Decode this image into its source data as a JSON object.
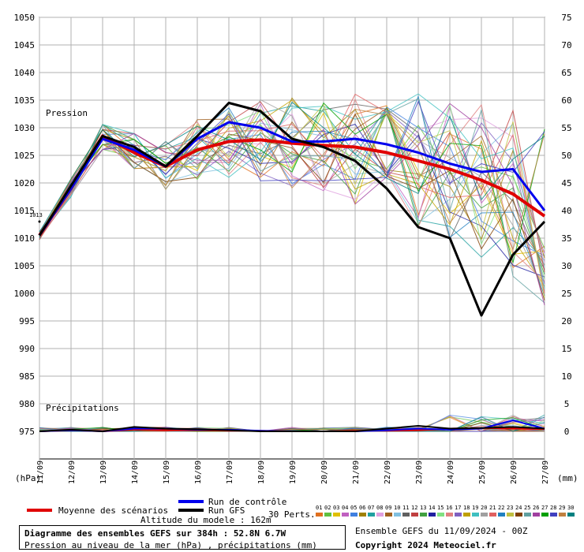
{
  "chart_data": {
    "type": "line",
    "x": [
      "11/09",
      "12/09",
      "13/09",
      "14/09",
      "15/09",
      "16/09",
      "17/09",
      "18/09",
      "19/09",
      "20/09",
      "21/09",
      "22/09",
      "23/09",
      "24/09",
      "25/09",
      "26/09",
      "27/09"
    ],
    "left_axis": {
      "unit": "(hPa)",
      "min": 970,
      "max": 1050,
      "ticks": [
        975,
        980,
        985,
        990,
        995,
        1000,
        1005,
        1010,
        1015,
        1020,
        1025,
        1030,
        1035,
        1040,
        1045,
        1050
      ]
    },
    "right_axis": {
      "unit": "(mm)",
      "min": -5,
      "max": 75,
      "ticks": [
        0,
        5,
        10,
        15,
        20,
        25,
        30,
        35,
        40,
        45,
        50,
        55,
        60,
        65,
        70,
        75
      ]
    },
    "labels": {
      "pressure": "Pression",
      "precip": "Précipitations",
      "left_tick": "1013"
    },
    "series": [
      {
        "name": "Moyenne des scénarios",
        "color": "#e00000",
        "width": 4,
        "values": [
          1010.5,
          1019,
          1028.5,
          1025.5,
          1023,
          1026,
          1027.5,
          1027.8,
          1027.2,
          1026.8,
          1026.5,
          1025.5,
          1024,
          1022.5,
          1020.5,
          1018,
          1014
        ]
      },
      {
        "name": "Run de contrôle",
        "color": "#0000ee",
        "width": 3,
        "values": [
          1010.5,
          1019,
          1028,
          1026,
          1023,
          1028,
          1031,
          1030,
          1027.5,
          1027.5,
          1028,
          1027,
          1025.5,
          1023.5,
          1022,
          1022.5,
          1015
        ]
      },
      {
        "name": "Run GFS",
        "color": "#000000",
        "width": 3,
        "values": [
          1010.5,
          1019.5,
          1028.5,
          1026.5,
          1023,
          1028.5,
          1034.5,
          1033,
          1028,
          1026.5,
          1024,
          1019,
          1012,
          1010,
          996,
          1007,
          1013
        ]
      }
    ],
    "precip_series": [
      {
        "name": "Moyenne des scénarios",
        "color": "#e00000",
        "values": [
          0,
          0.2,
          0,
          0.3,
          0.2,
          0.2,
          0.1,
          0.1,
          0,
          0,
          0.1,
          0.1,
          0.2,
          0.5,
          0.6,
          0.5,
          0.4
        ]
      },
      {
        "name": "Run de contrôle",
        "color": "#0000ee",
        "values": [
          0,
          0.2,
          0,
          0.5,
          0.5,
          0.3,
          0.3,
          0.1,
          0,
          0,
          0,
          0.2,
          0.5,
          0.3,
          0.5,
          2,
          0.5
        ]
      },
      {
        "name": "Run GFS",
        "color": "#000000",
        "values": [
          0,
          0.3,
          0,
          0.8,
          0.5,
          0.4,
          0.2,
          0,
          0,
          0,
          0,
          0.5,
          1,
          0.5,
          0.6,
          0.8,
          0.5
        ]
      }
    ],
    "perts_count_label": "30 Perts.",
    "perts": [
      "01",
      "02",
      "03",
      "04",
      "05",
      "06",
      "07",
      "08",
      "09",
      "10",
      "11",
      "12",
      "13",
      "14",
      "15",
      "16",
      "17",
      "18",
      "19",
      "20",
      "21",
      "22",
      "23",
      "24",
      "25",
      "26",
      "27",
      "28",
      "29",
      "30"
    ],
    "pert_colors": [
      "#e07020",
      "#60c040",
      "#e0c000",
      "#c060c0",
      "#4080e0",
      "#a08000",
      "#20a0a0",
      "#e0a0e0",
      "#a06020",
      "#80c0e0",
      "#606060",
      "#c04040",
      "#40a040",
      "#2020a0",
      "#80e080",
      "#e08080",
      "#8060c0",
      "#c0a000",
      "#40c0c0",
      "#a0a0a0",
      "#e06060",
      "#2080c0",
      "#c0c040",
      "#804000",
      "#60a0a0",
      "#a040a0",
      "#00a000",
      "#4040c0",
      "#c08040",
      "#008080"
    ]
  },
  "legend": {
    "mean": "Moyenne des scénarios",
    "control": "Run de contrôle",
    "gfs": "Run GFS",
    "altitude": "Altitude du modele : 162m"
  },
  "colors": {
    "mean": "#e00000",
    "control": "#0000ee",
    "gfs": "#000000"
  },
  "footer": {
    "title": "Diagramme des ensembles GEFS sur 384h : 52.8N 6.7W",
    "subtitle": "Pression au niveau de la mer (hPa) , précipitations (mm)",
    "run": "Ensemble GEFS du 11/09/2024 - 00Z",
    "copyright": "Copyright 2024 Meteociel.fr"
  }
}
